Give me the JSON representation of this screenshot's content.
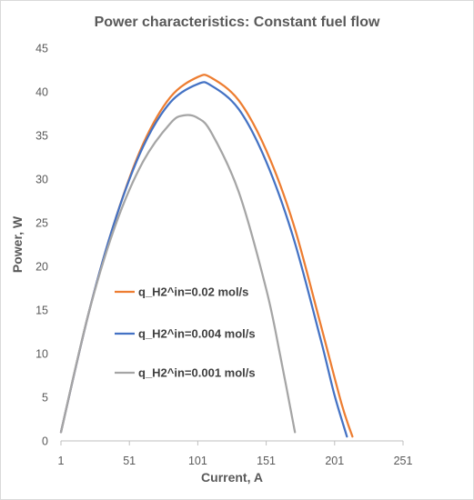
{
  "chart_data": {
    "type": "line",
    "title": "Power characteristics: Constant fuel flow",
    "xlabel": "Current, A",
    "ylabel": "Power, W",
    "xlim": [
      1,
      251
    ],
    "ylim": [
      0,
      45
    ],
    "xticks": [
      1,
      51,
      101,
      151,
      201,
      251
    ],
    "yticks": [
      0,
      5,
      10,
      15,
      20,
      25,
      30,
      35,
      40,
      45
    ],
    "grid": false,
    "legend_position": "inside-left",
    "series": [
      {
        "name": "q_H2^in=0.02 mol/s",
        "color": "#ED7D31",
        "x": [
          1,
          21,
          41,
          61,
          81,
          101,
          111,
          131,
          151,
          171,
          191,
          206,
          214
        ],
        "y": [
          1,
          14.5,
          25.5,
          34.0,
          39.4,
          41.7,
          41.6,
          39.0,
          33.3,
          24.8,
          13.2,
          4.3,
          0.5
        ]
      },
      {
        "name": "q_H2^in=0.004 mol/s",
        "color": "#4472C4",
        "x": [
          1,
          21,
          41,
          61,
          81,
          101,
          111,
          131,
          151,
          171,
          191,
          201,
          210
        ],
        "y": [
          1,
          14.5,
          25.5,
          33.7,
          38.8,
          40.9,
          40.7,
          38.0,
          32.0,
          23.2,
          11.5,
          5.2,
          0.5
        ]
      },
      {
        "name": "q_H2^in=0.001 mol/s",
        "color": "#A5A5A5",
        "x": [
          1,
          21,
          41,
          61,
          81,
          91,
          101,
          111,
          131,
          151,
          161,
          172
        ],
        "y": [
          1,
          14.5,
          24.8,
          32.0,
          36.4,
          37.3,
          37.0,
          35.3,
          28.5,
          17.4,
          10.0,
          1.0
        ]
      }
    ]
  }
}
